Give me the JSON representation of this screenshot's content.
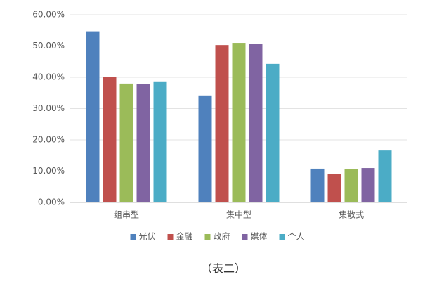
{
  "chart_data": {
    "type": "bar",
    "categories": [
      "组串型",
      "集中型",
      "集散式"
    ],
    "series": [
      {
        "name": "光伏",
        "color": "#4f81bd",
        "values": [
          54.7,
          34.2,
          10.8
        ]
      },
      {
        "name": "金融",
        "color": "#c0504d",
        "values": [
          40.0,
          50.3,
          9.0
        ]
      },
      {
        "name": "政府",
        "color": "#9bbb59",
        "values": [
          38.0,
          51.0,
          10.6
        ]
      },
      {
        "name": "媒体",
        "color": "#8064a2",
        "values": [
          37.8,
          50.6,
          11.0
        ]
      },
      {
        "name": "个人",
        "color": "#4bacc6",
        "values": [
          38.7,
          44.3,
          16.6
        ]
      }
    ],
    "ylim": [
      0,
      60
    ],
    "yticks": [
      {
        "value": 0,
        "label": "0.00%"
      },
      {
        "value": 10,
        "label": "10.00%"
      },
      {
        "value": 20,
        "label": "20.00%"
      },
      {
        "value": 30,
        "label": "30.00%"
      },
      {
        "value": 40,
        "label": "40.00%"
      },
      {
        "value": 50,
        "label": "50.00%"
      },
      {
        "value": 60,
        "label": "60.00%"
      }
    ],
    "grid": true,
    "legend": "bottom"
  },
  "caption": "（表二）"
}
